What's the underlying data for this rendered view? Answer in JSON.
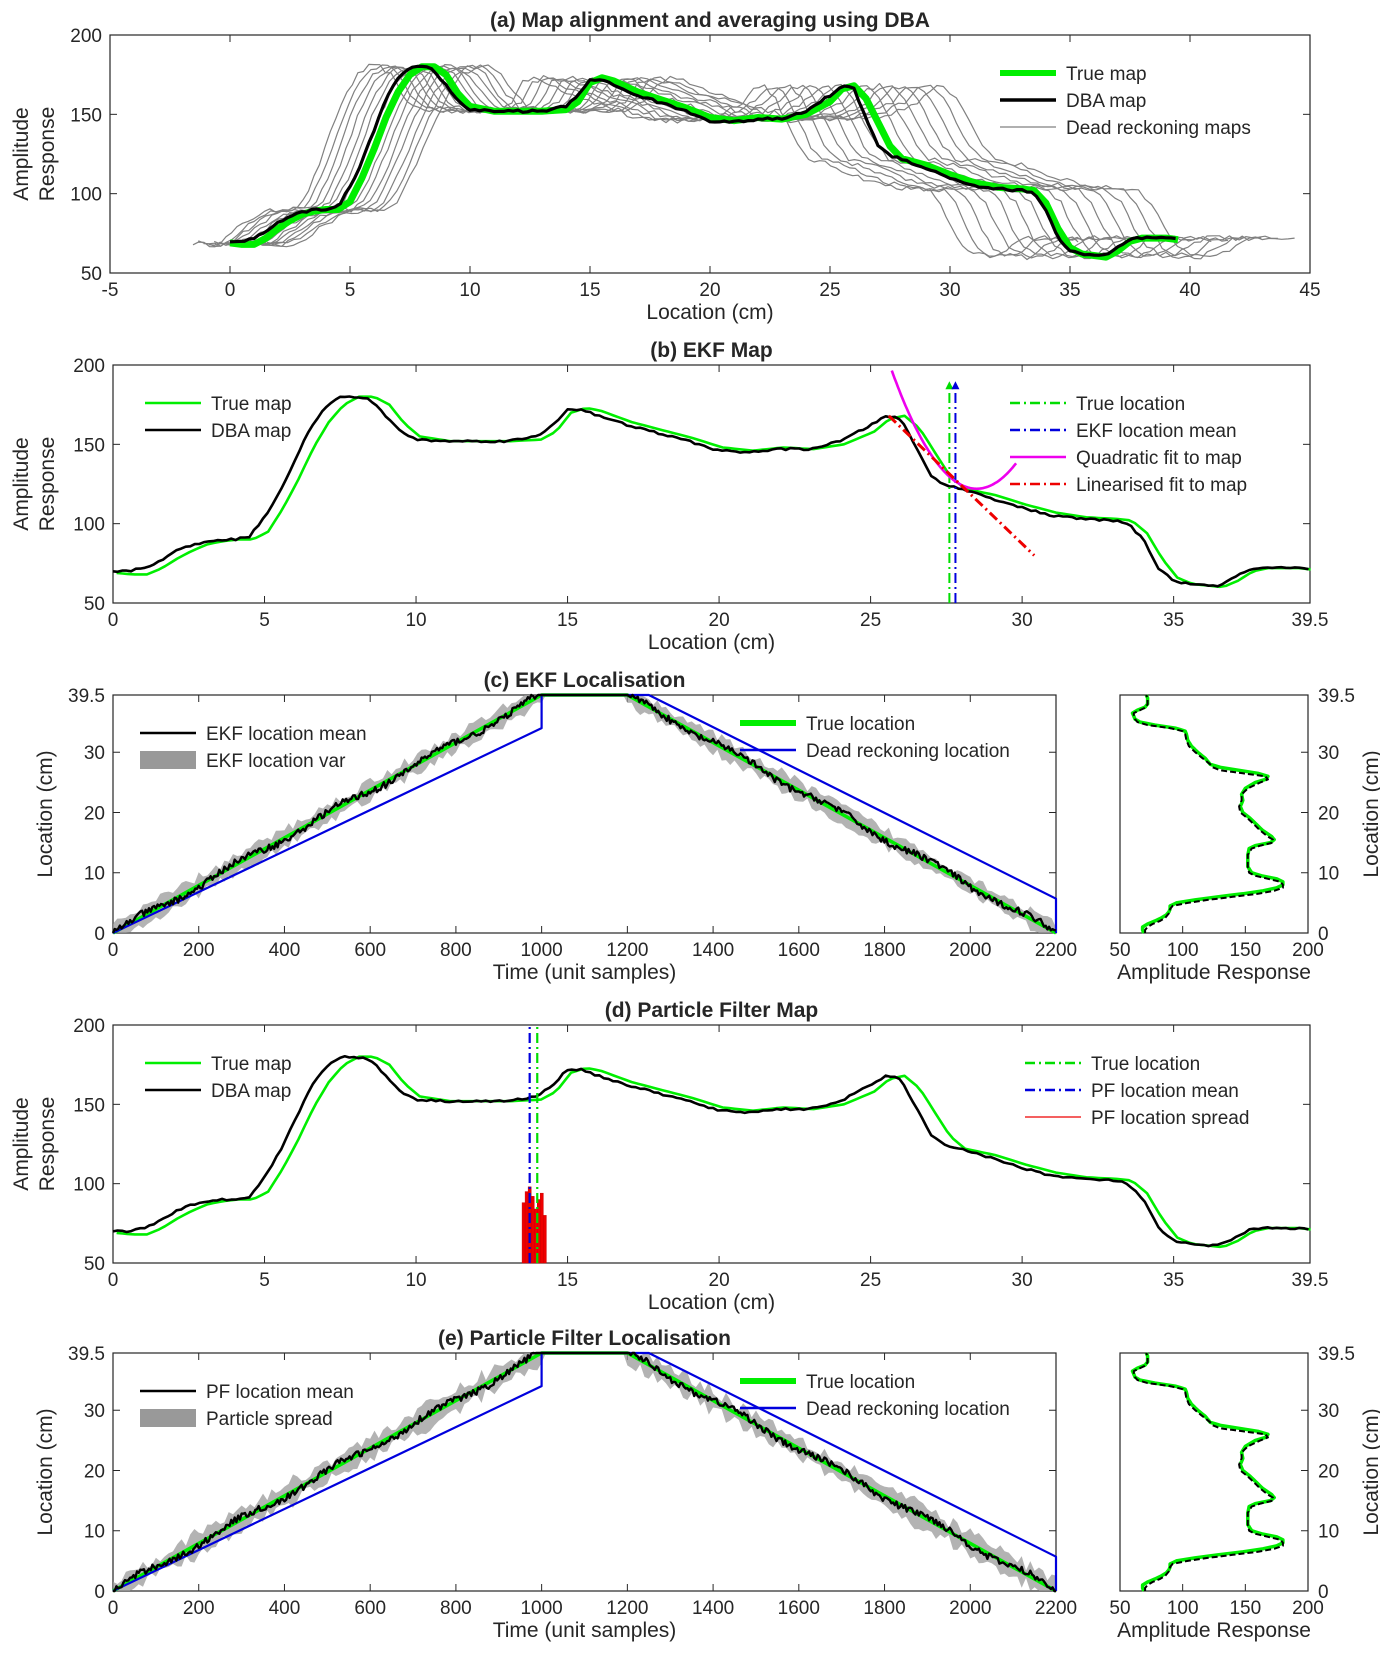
{
  "chart_data": [
    {
      "id": "a",
      "type": "line",
      "title": "(a) Map alignment and averaging using DBA",
      "xlabel": "Location (cm)",
      "ylabel": [
        "Amplitude",
        "Response"
      ],
      "xlim": [
        -5,
        45
      ],
      "ylim": [
        50,
        200
      ],
      "xticks": [
        -5,
        0,
        5,
        10,
        15,
        20,
        25,
        30,
        35,
        40,
        45
      ],
      "yticks": [
        50,
        100,
        150,
        200
      ],
      "grid": false,
      "legend_position": "top-right",
      "dead_reckoning_map_count": 15,
      "series": [
        {
          "name": "True map",
          "color": "#00ee00",
          "x": [
            0,
            0.5,
            1,
            1.5,
            2,
            2.5,
            3,
            3.5,
            4,
            4.5,
            5,
            5.5,
            6,
            6.5,
            7,
            7.5,
            8,
            8.5,
            9,
            9.5,
            10,
            11,
            12,
            13,
            14,
            14.5,
            15,
            15.5,
            16,
            17,
            18,
            19,
            20,
            21,
            22,
            23,
            24,
            25,
            25.5,
            26,
            26.5,
            27,
            27.5,
            28,
            29,
            30,
            31,
            32,
            33,
            33.5,
            34,
            34.5,
            35,
            35.5,
            36,
            36.5,
            37,
            37.5,
            38,
            39,
            39.5
          ],
          "y": [
            69,
            68,
            68,
            72,
            78,
            83,
            87,
            89,
            90,
            90,
            95,
            110,
            128,
            148,
            164,
            175,
            180,
            180,
            175,
            163,
            155,
            152,
            152,
            152,
            153,
            158,
            170,
            173,
            171,
            164,
            159,
            154,
            148,
            146,
            148,
            147,
            150,
            158,
            166,
            168,
            160,
            145,
            130,
            122,
            118,
            112,
            107,
            104,
            103,
            102,
            94,
            78,
            66,
            62,
            61,
            60,
            64,
            70,
            72,
            72,
            71
          ]
        },
        {
          "name": "DBA map",
          "color": "#000000",
          "x": [
            0,
            0.5,
            1,
            1.5,
            2,
            2.5,
            3,
            3.5,
            4,
            4.5,
            5,
            5.5,
            6,
            6.5,
            7,
            7.5,
            8,
            8.5,
            9,
            9.5,
            10,
            11,
            12,
            13,
            14,
            14.5,
            15,
            15.5,
            16,
            17,
            18,
            19,
            20,
            21,
            22,
            23,
            24,
            25,
            25.5,
            26,
            26.5,
            27,
            27.5,
            28,
            29,
            30,
            31,
            32,
            33,
            33.5,
            34,
            34.5,
            35,
            35.5,
            36,
            36.5,
            37,
            37.5,
            38,
            39,
            39.5
          ],
          "y": [
            70,
            70,
            72,
            76,
            82,
            86,
            88,
            90,
            90,
            92,
            104,
            120,
            140,
            160,
            173,
            180,
            180,
            178,
            168,
            158,
            153,
            152,
            152,
            152,
            155,
            162,
            172,
            172,
            168,
            162,
            157,
            152,
            146,
            145,
            147,
            147,
            152,
            162,
            168,
            166,
            148,
            130,
            124,
            122,
            116,
            110,
            105,
            103,
            102,
            100,
            90,
            72,
            64,
            62,
            61,
            61,
            66,
            71,
            72,
            72,
            71
          ]
        },
        {
          "name": "Dead reckoning maps",
          "color": "#808080"
        }
      ]
    },
    {
      "id": "b",
      "type": "line",
      "title": "(b) EKF Map",
      "xlabel": "Location (cm)",
      "ylabel": [
        "Amplitude",
        "Response"
      ],
      "xlim": [
        0,
        39.5
      ],
      "ylim": [
        50,
        200
      ],
      "xticks": [
        0,
        5,
        10,
        15,
        20,
        25,
        30,
        35,
        39.5
      ],
      "yticks": [
        50,
        100,
        150,
        200
      ],
      "grid": false,
      "legend_position": "top-left and top-right",
      "series": [
        {
          "name": "True map",
          "color": "#00ee00"
        },
        {
          "name": "DBA map",
          "color": "#000000"
        },
        {
          "name": "True location",
          "color": "#00dd00",
          "x": 27.6
        },
        {
          "name": "EKF location mean",
          "color": "#0000dd",
          "x": 27.8
        },
        {
          "name": "Quadratic fit to map",
          "color": "#ee00ee"
        },
        {
          "name": "Linearised fit to map",
          "color": "#ee0000",
          "x": [
            25.6,
            30.4
          ],
          "y": [
            168,
            80
          ]
        }
      ]
    },
    {
      "id": "c",
      "type": "line",
      "title": "(c) EKF Localisation",
      "xlabel": "Time (unit samples)",
      "ylabel": "Location (cm)",
      "xlim": [
        0,
        2200
      ],
      "ylim": [
        0,
        39.5
      ],
      "xticks": [
        0,
        200,
        400,
        600,
        800,
        1000,
        1200,
        1400,
        1600,
        1800,
        2000,
        2200
      ],
      "yticks": [
        0,
        10,
        20,
        30,
        39.5
      ],
      "grid": false,
      "legend_position": "top-left and top-right",
      "series": [
        {
          "name": "EKF location mean",
          "color": "#000000"
        },
        {
          "name": "EKF location var",
          "color": "#999999"
        },
        {
          "name": "True location",
          "color": "#00ee00",
          "x": [
            0,
            1000,
            1200,
            2200
          ],
          "y": [
            0,
            39.5,
            39.5,
            0
          ]
        },
        {
          "name": "Dead reckoning location",
          "color": "#0000dd",
          "x": [
            0,
            1000,
            1000,
            1250,
            2200,
            2200
          ],
          "y": [
            0,
            34,
            39.5,
            39.5,
            5.7,
            0
          ]
        }
      ],
      "side_panel": {
        "xlabel": "Amplitude Response",
        "ylabel": "Location (cm)",
        "xlim": [
          50,
          200
        ],
        "ylim": [
          0,
          39.5
        ],
        "xticks": [
          50,
          100,
          150,
          200
        ],
        "yticks": [
          0,
          10,
          20,
          30,
          39.5
        ]
      }
    },
    {
      "id": "d",
      "type": "line",
      "title": "(d) Particle Filter Map",
      "xlabel": "Location (cm)",
      "ylabel": [
        "Amplitude",
        "Response"
      ],
      "xlim": [
        0,
        39.5
      ],
      "ylim": [
        50,
        200
      ],
      "xticks": [
        0,
        5,
        10,
        15,
        20,
        25,
        30,
        35,
        39.5
      ],
      "yticks": [
        50,
        100,
        150,
        200
      ],
      "grid": false,
      "legend_position": "top-left and top-right",
      "series": [
        {
          "name": "True map",
          "color": "#00ee00"
        },
        {
          "name": "DBA map",
          "color": "#000000"
        },
        {
          "name": "True location",
          "color": "#00dd00",
          "x": 14.0
        },
        {
          "name": "PF location mean",
          "color": "#0000dd",
          "x": 13.75
        },
        {
          "name": "PF location spread",
          "color": "#ee0000",
          "x": [
            13.5,
            13.6,
            13.7,
            13.8,
            13.9,
            14.0,
            14.1,
            14.2
          ],
          "y": [
            88,
            95,
            98,
            92,
            84,
            90,
            94,
            80
          ]
        }
      ]
    },
    {
      "id": "e",
      "type": "line",
      "title": "(e) Particle Filter Localisation",
      "xlabel": "Time (unit samples)",
      "ylabel": "Location (cm)",
      "xlim": [
        0,
        2200
      ],
      "ylim": [
        0,
        39.5
      ],
      "xticks": [
        0,
        200,
        400,
        600,
        800,
        1000,
        1200,
        1400,
        1600,
        1800,
        2000,
        2200
      ],
      "yticks": [
        0,
        10,
        20,
        30,
        39.5
      ],
      "grid": false,
      "legend_position": "top-left and top-right",
      "series": [
        {
          "name": "PF location mean",
          "color": "#000000"
        },
        {
          "name": "Particle spread",
          "color": "#999999"
        },
        {
          "name": "True location",
          "color": "#00ee00",
          "x": [
            0,
            1000,
            1200,
            2200
          ],
          "y": [
            0,
            39.5,
            39.5,
            0
          ]
        },
        {
          "name": "Dead reckoning location",
          "color": "#0000dd",
          "x": [
            0,
            1000,
            1000,
            1250,
            2200,
            2200
          ],
          "y": [
            0,
            34,
            39.5,
            39.5,
            5.7,
            0
          ]
        }
      ],
      "side_panel": {
        "xlabel": "Amplitude Response",
        "ylabel": "Location (cm)",
        "xlim": [
          50,
          200
        ],
        "ylim": [
          0,
          39.5
        ],
        "xticks": [
          50,
          100,
          150,
          200
        ],
        "yticks": [
          0,
          10,
          20,
          30,
          39.5
        ]
      }
    }
  ]
}
